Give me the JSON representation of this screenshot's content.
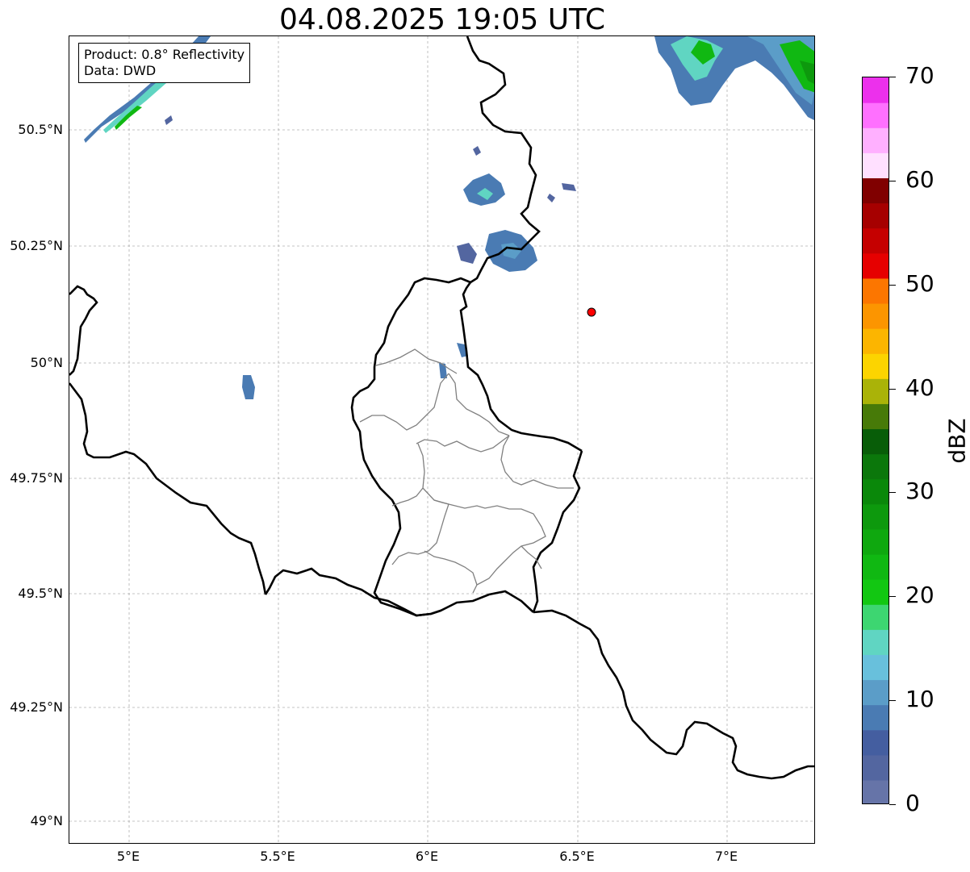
{
  "title": "04.08.2025 19:05 UTC",
  "info": {
    "product": "Product: 0.8° Reflectivity",
    "data": "Data: DWD"
  },
  "axes": {
    "lat_ticks": [
      "50.5°N",
      "50.25°N",
      "50°N",
      "49.75°N",
      "49.5°N",
      "49.25°N",
      "49°N"
    ],
    "lon_ticks": [
      "5°E",
      "5.5°E",
      "6°E",
      "6.5°E",
      "7°E"
    ]
  },
  "colorbar": {
    "unit": "dBZ",
    "ticks": [
      "0",
      "10",
      "20",
      "30",
      "40",
      "50",
      "60",
      "70"
    ],
    "colors": [
      "#6674a8",
      "#5366a0",
      "#445ea0",
      "#4a7bb3",
      "#5b9dc8",
      "#68c0dc",
      "#60d5c2",
      "#3dd671",
      "#12c712",
      "#10b812",
      "#0fa80f",
      "#0d990d",
      "#0a880a",
      "#0b770b",
      "#085d08",
      "#477a08",
      "#aab308",
      "#fcd400",
      "#fcb500",
      "#fc9500",
      "#fc7600",
      "#e60000",
      "#c50000",
      "#a60000",
      "#800000",
      "#ffe0ff",
      "#ffb0ff",
      "#ff70ff",
      "#ec30ec"
    ]
  },
  "marker": {
    "lon": 6.55,
    "lat": 50.11,
    "color": "#ff0000"
  }
}
